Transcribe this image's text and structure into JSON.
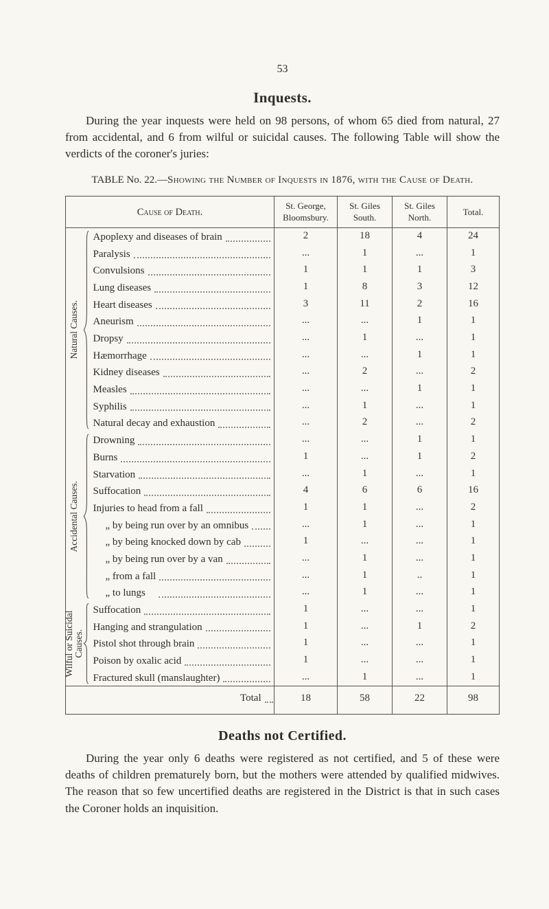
{
  "page_number": "53",
  "inquests": {
    "title": "Inquests.",
    "paragraph": "During the year inquests were held on 98 persons, of whom 65 died from natural, 27 from accidental, and 6 from wilful or suicidal causes. The following Table will show the verdicts of the coroner's juries:"
  },
  "table": {
    "caption_prefix": "TABLE No. 22.—",
    "caption_rest": "Showing the Number of Inquests in 1876, with the Cause of Death.",
    "headers": {
      "cause": "Cause of Death.",
      "cols": [
        "St. George, Bloomsbury.",
        "St. Giles South.",
        "St. Giles North.",
        "Total."
      ]
    },
    "groups": [
      {
        "label": "Natural Causes.",
        "rows": [
          {
            "label": "Apoplexy and diseases of brain",
            "values": [
              "2",
              "18",
              "4",
              "24"
            ]
          },
          {
            "label": "Paralysis",
            "values": [
              "...",
              "1",
              "...",
              "1"
            ]
          },
          {
            "label": "Convulsions",
            "values": [
              "1",
              "1",
              "1",
              "3"
            ]
          },
          {
            "label": "Lung diseases",
            "values": [
              "1",
              "8",
              "3",
              "12"
            ]
          },
          {
            "label": "Heart diseases",
            "values": [
              "3",
              "11",
              "2",
              "16"
            ]
          },
          {
            "label": "Aneurism",
            "values": [
              "...",
              "...",
              "1",
              "1"
            ]
          },
          {
            "label": "Dropsy",
            "values": [
              "...",
              "1",
              "...",
              "1"
            ]
          },
          {
            "label": "Hæmorrhage",
            "values": [
              "...",
              "...",
              "1",
              "1"
            ]
          },
          {
            "label": "Kidney diseases",
            "values": [
              "...",
              "2",
              "...",
              "2"
            ]
          },
          {
            "label": "Measles",
            "values": [
              "...",
              "...",
              "1",
              "1"
            ]
          },
          {
            "label": "Syphilis",
            "values": [
              "...",
              "1",
              "...",
              "1"
            ]
          },
          {
            "label": "Natural decay and exhaustion",
            "values": [
              "...",
              "2",
              "...",
              "2"
            ]
          }
        ]
      },
      {
        "label": "Accidental Causes.",
        "rows": [
          {
            "label": "Drowning",
            "values": [
              "...",
              "...",
              "1",
              "1"
            ]
          },
          {
            "label": "Burns",
            "values": [
              "1",
              "...",
              "1",
              "2"
            ]
          },
          {
            "label": "Starvation",
            "values": [
              "...",
              "1",
              "...",
              "1"
            ]
          },
          {
            "label": "Suffocation",
            "values": [
              "4",
              "6",
              "6",
              "16"
            ]
          },
          {
            "label": "Injuries to head from a fall",
            "values": [
              "1",
              "1",
              "...",
              "2"
            ]
          },
          {
            "label": "„ by being run over by an omnibus",
            "indent": true,
            "narrow": true,
            "values": [
              "...",
              "1",
              "...",
              "1"
            ]
          },
          {
            "label": "„ by being knocked down by cab",
            "indent": true,
            "narrow": true,
            "values": [
              "1",
              "...",
              "...",
              "1"
            ]
          },
          {
            "label": "„ by being run over by a van",
            "indent": true,
            "narrow": true,
            "values": [
              "...",
              "1",
              "...",
              "1"
            ]
          },
          {
            "label": "„ from a fall",
            "indent": true,
            "values": [
              "...",
              "1",
              "..",
              "1"
            ]
          },
          {
            "label": "„ to lungs",
            "indent": true,
            "values": [
              "...",
              "1",
              "...",
              "1"
            ]
          }
        ]
      },
      {
        "label": "Wilful or Suicidal Causes.",
        "rows": [
          {
            "label": "Suffocation",
            "values": [
              "1",
              "...",
              "...",
              "1"
            ]
          },
          {
            "label": "Hanging and strangulation",
            "values": [
              "1",
              "...",
              "1",
              "2"
            ]
          },
          {
            "label": "Pistol shot through brain",
            "values": [
              "1",
              "...",
              "...",
              "1"
            ]
          },
          {
            "label": "Poison by oxalic acid",
            "values": [
              "1",
              "...",
              "...",
              "1"
            ]
          },
          {
            "label": "Fractured skull (manslaughter)",
            "narrow": true,
            "values": [
              "...",
              "1",
              "...",
              "1"
            ]
          }
        ]
      }
    ],
    "total": {
      "label": "Total",
      "values": [
        "18",
        "58",
        "22",
        "98"
      ]
    }
  },
  "not_certified": {
    "title": "Deaths not Certified.",
    "paragraph": "During the year only 6 deaths were registered as not certified, and 5 of these were deaths of children prematurely born, but the mothers were attended by qualified midwives. The reason that so few uncertified deaths are registered in the District is that in such cases the Coroner holds an inquisition."
  }
}
